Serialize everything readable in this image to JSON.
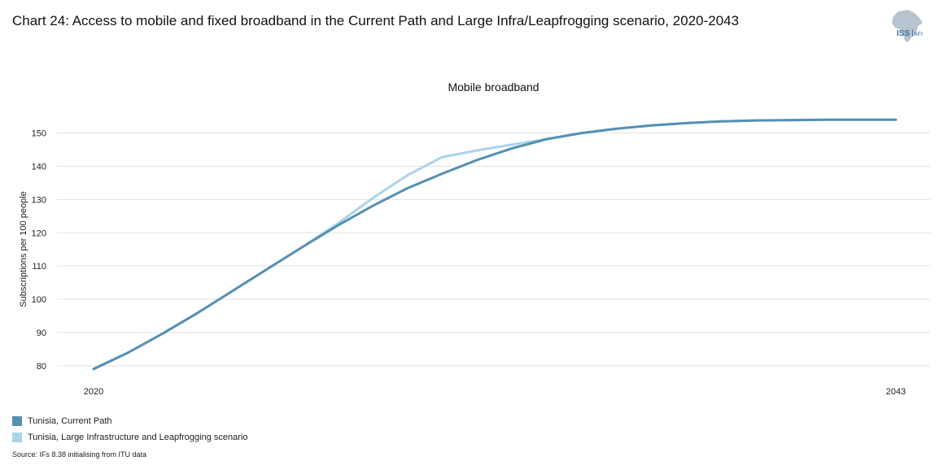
{
  "page": {
    "title": "Chart 24: Access to mobile and fixed broadband in the Current Path and Large Infra/Leapfrogging scenario, 2020-2043",
    "source": "Source: IFs 8.38 initialising from ITU data",
    "logo_text": "ISS AFI"
  },
  "chart_data": {
    "type": "line",
    "title": "Mobile broadband",
    "xlabel": "",
    "ylabel": "Subscriptions per 100 people",
    "x": [
      2020,
      2021,
      2022,
      2023,
      2024,
      2025,
      2026,
      2027,
      2028,
      2029,
      2030,
      2031,
      2032,
      2033,
      2034,
      2035,
      2036,
      2037,
      2038,
      2039,
      2040,
      2041,
      2042,
      2043
    ],
    "x_tick_labels": [
      "2020",
      "2043"
    ],
    "yticks": [
      80,
      90,
      100,
      110,
      120,
      130,
      140,
      150
    ],
    "ylim": [
      78,
      157
    ],
    "grid": true,
    "legend_position": "bottom-left",
    "series": [
      {
        "name": "Tunisia, Large Infrastructure and Leapfrogging scenario",
        "color": "#a9d4ec",
        "values": [
          79.0,
          84.0,
          89.8,
          96.0,
          102.6,
          109.2,
          115.8,
          122.8,
          130.4,
          137.3,
          142.8,
          144.8,
          146.5,
          148.2,
          150.0,
          151.3,
          152.3,
          153.0,
          153.5,
          153.8,
          153.9,
          154.0,
          154.0,
          154.0
        ]
      },
      {
        "name": "Tunisia, Current Path",
        "color": "#5590b2",
        "values": [
          79.0,
          84.0,
          89.8,
          96.0,
          102.6,
          109.2,
          115.8,
          122.2,
          128.1,
          133.4,
          137.8,
          141.9,
          145.4,
          148.2,
          150.0,
          151.3,
          152.3,
          153.0,
          153.5,
          153.8,
          153.9,
          154.0,
          154.0,
          154.0
        ]
      }
    ]
  },
  "legend": {
    "items": [
      {
        "label": "Tunisia, Current Path",
        "color": "#5590b2"
      },
      {
        "label": "Tunisia, Large Infrastructure and Leapfrogging scenario",
        "color": "#a9d4ec"
      }
    ]
  }
}
